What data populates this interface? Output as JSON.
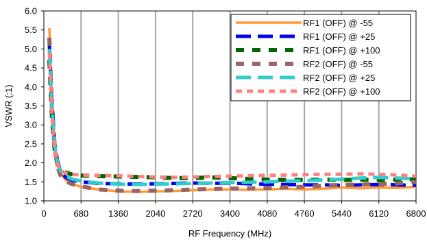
{
  "chart_data": {
    "type": "line",
    "title": "",
    "xlabel": "RF Frequency (MHz)",
    "ylabel": "VSWR (:1)",
    "xlim": [
      0,
      6800
    ],
    "ylim": [
      1.0,
      6.0
    ],
    "x_ticks": [
      0,
      680,
      1360,
      2040,
      2720,
      3400,
      4080,
      4760,
      5440,
      6120,
      6800
    ],
    "x_tick_labels": [
      "0",
      "680",
      "1360",
      "2040",
      "2720",
      "3400",
      "4080",
      "4760",
      "5440",
      "6120",
      "6800"
    ],
    "y_ticks": [
      1.0,
      1.5,
      2.0,
      2.5,
      3.0,
      3.5,
      4.0,
      4.5,
      5.0,
      5.5,
      6.0
    ],
    "y_tick_labels": [
      "1.0",
      "1.5",
      "2.0",
      "2.5",
      "3.0",
      "3.5",
      "4.0",
      "4.5",
      "5.0",
      "5.5",
      "6.0"
    ],
    "grid": "vertical",
    "legend_position": "top-right",
    "series": [
      {
        "name": "RF1 (OFF) @ -55",
        "color": "#ff9933",
        "dash": "solid",
        "x": [
          100,
          150,
          200,
          250,
          300,
          400,
          500,
          680,
          1000,
          1360,
          1700,
          2040,
          2400,
          2720,
          3060,
          3400,
          3740,
          4080,
          4420,
          4760,
          5100,
          5440,
          5780,
          6120,
          6460,
          6800
        ],
        "y": [
          5.55,
          3.5,
          2.4,
          1.95,
          1.72,
          1.55,
          1.45,
          1.37,
          1.3,
          1.25,
          1.24,
          1.25,
          1.26,
          1.28,
          1.3,
          1.3,
          1.29,
          1.3,
          1.32,
          1.3,
          1.32,
          1.35,
          1.33,
          1.35,
          1.34,
          1.37
        ]
      },
      {
        "name": "RF1 (OFF) @ +25",
        "color": "#0000ee",
        "dash": "long",
        "x": [
          100,
          150,
          200,
          250,
          300,
          400,
          500,
          680,
          1000,
          1360,
          1700,
          2040,
          2400,
          2720,
          3060,
          3400,
          3740,
          4080,
          4420,
          4760,
          5100,
          5440,
          5780,
          6120,
          6460,
          6800
        ],
        "y": [
          5.1,
          3.6,
          2.5,
          2.05,
          1.8,
          1.62,
          1.55,
          1.5,
          1.46,
          1.45,
          1.44,
          1.45,
          1.46,
          1.47,
          1.46,
          1.47,
          1.45,
          1.44,
          1.43,
          1.42,
          1.42,
          1.41,
          1.42,
          1.43,
          1.42,
          1.41
        ]
      },
      {
        "name": "RF1 (OFF) @ +100",
        "color": "#006600",
        "dash": "dash",
        "x": [
          100,
          150,
          200,
          250,
          300,
          400,
          500,
          680,
          1000,
          1360,
          1700,
          2040,
          2400,
          2720,
          3060,
          3400,
          3740,
          4080,
          4420,
          4760,
          5100,
          5440,
          5780,
          6120,
          6460,
          6800
        ],
        "y": [
          4.7,
          3.1,
          2.3,
          1.95,
          1.85,
          1.75,
          1.7,
          1.67,
          1.65,
          1.64,
          1.63,
          1.62,
          1.6,
          1.6,
          1.62,
          1.6,
          1.58,
          1.56,
          1.55,
          1.55,
          1.56,
          1.55,
          1.56,
          1.55,
          1.56,
          1.57
        ]
      },
      {
        "name": "RF2 (OFF) @ -55",
        "color": "#996666",
        "dash": "dash",
        "x": [
          100,
          150,
          200,
          250,
          300,
          400,
          500,
          680,
          1000,
          1360,
          1700,
          2040,
          2400,
          2720,
          3060,
          3400,
          3740,
          4080,
          4420,
          4760,
          5100,
          5440,
          5780,
          6120,
          6460,
          6800
        ],
        "y": [
          5.3,
          3.3,
          2.35,
          1.9,
          1.68,
          1.52,
          1.45,
          1.38,
          1.3,
          1.27,
          1.26,
          1.27,
          1.28,
          1.3,
          1.31,
          1.32,
          1.33,
          1.34,
          1.36,
          1.37,
          1.4,
          1.42,
          1.43,
          1.44,
          1.46,
          1.5
        ]
      },
      {
        "name": "RF2 (OFF) @ +25",
        "color": "#33cccc",
        "dash": "long",
        "x": [
          100,
          150,
          200,
          250,
          300,
          400,
          500,
          680,
          1000,
          1360,
          1700,
          2040,
          2400,
          2720,
          3060,
          3400,
          3740,
          4080,
          4420,
          4760,
          5100,
          5440,
          5780,
          6120,
          6460,
          6800
        ],
        "y": [
          5.0,
          3.4,
          2.45,
          2.0,
          1.8,
          1.66,
          1.58,
          1.52,
          1.47,
          1.44,
          1.43,
          1.44,
          1.45,
          1.46,
          1.47,
          1.48,
          1.49,
          1.5,
          1.52,
          1.53,
          1.55,
          1.57,
          1.6,
          1.62,
          1.6,
          1.58
        ]
      },
      {
        "name": "RF2 (OFF) @ +100",
        "color": "#ff8080",
        "dash": "short",
        "x": [
          100,
          150,
          200,
          250,
          300,
          400,
          500,
          680,
          1000,
          1360,
          1700,
          2040,
          2400,
          2720,
          3060,
          3400,
          3740,
          4080,
          4420,
          4760,
          5100,
          5440,
          5780,
          6120,
          6460,
          6800
        ],
        "y": [
          4.9,
          3.2,
          2.35,
          1.95,
          1.8,
          1.73,
          1.7,
          1.68,
          1.67,
          1.66,
          1.64,
          1.63,
          1.62,
          1.63,
          1.64,
          1.65,
          1.66,
          1.67,
          1.68,
          1.69,
          1.7,
          1.7,
          1.71,
          1.7,
          1.68,
          1.65
        ]
      }
    ]
  }
}
